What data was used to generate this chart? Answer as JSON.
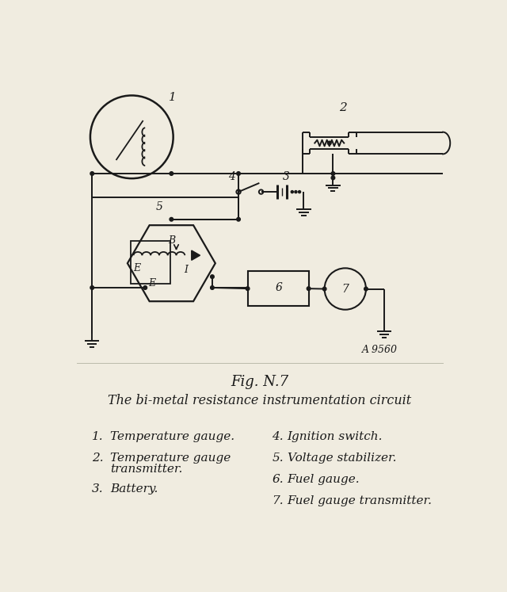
{
  "bg_color": "#f0ece0",
  "line_color": "#1a1a1a",
  "title": "Fig. N.7",
  "subtitle": "The bi-metal resistance instrumentation circuit",
  "ref_code": "A 9560",
  "legend": [
    {
      "num": "1.",
      "text": "Temperature gauge."
    },
    {
      "num": "2.",
      "text": "Temperature gauge\ntransmitter."
    },
    {
      "num": "3.",
      "text": "Battery."
    },
    {
      "num": "4.",
      "text": "Ignition switch."
    },
    {
      "num": "5.",
      "text": "Voltage stabilizer."
    },
    {
      "num": "6.",
      "text": "Fuel gauge."
    },
    {
      "num": "7.",
      "text": "Fuel gauge transmitter."
    }
  ]
}
